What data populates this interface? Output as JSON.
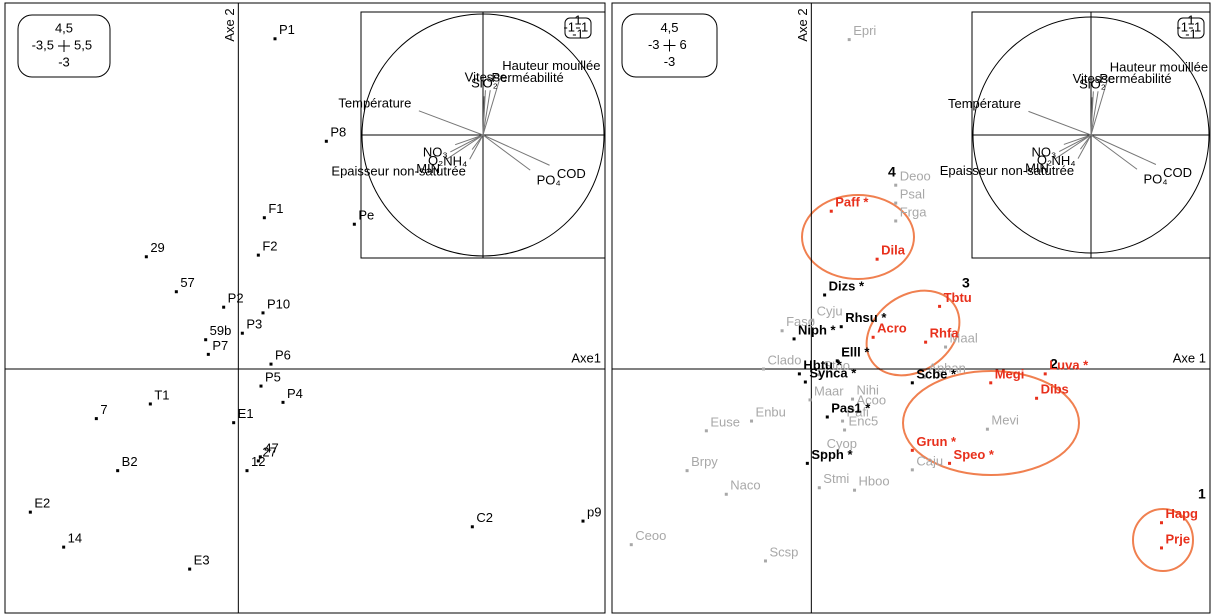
{
  "chart_data": [
    {
      "type": "scatter",
      "x_label": "Axe1",
      "y_label": "Axe 2",
      "xlim": [
        -3.5,
        5.5
      ],
      "ylim": [
        -3,
        4.5
      ],
      "xticks": [
        {
          "value": -3.5,
          "label": "-3,5"
        },
        {
          "value": 5.5,
          "label": "5,5"
        }
      ],
      "yticks": [
        -3,
        {
          "value": 4.5,
          "label": "4,5"
        }
      ],
      "series": [
        {
          "color": "#000000",
          "labels": [
            "P1",
            "P8",
            "Pe",
            "F1",
            "F2",
            "29",
            "57",
            "P2",
            "P10",
            "59b",
            "P3",
            "P7",
            "P6",
            "P5",
            "P4",
            "7",
            "T1",
            "E1",
            "47",
            "27",
            "12",
            "B2",
            "E2",
            "14",
            "C2",
            "p9",
            "E3"
          ],
          "x": [
            0.55,
            1.32,
            1.74,
            0.39,
            0.3,
            -1.38,
            -0.93,
            -0.22,
            0.37,
            -0.49,
            0.06,
            -0.45,
            0.49,
            0.34,
            0.67,
            -2.13,
            -1.32,
            -0.07,
            0.33,
            0.3,
            0.13,
            -1.81,
            -3.12,
            -2.62,
            3.51,
            5.17,
            -0.73
          ],
          "values": [
            4.06,
            2.8,
            1.78,
            1.86,
            1.4,
            1.38,
            0.95,
            0.76,
            0.69,
            0.36,
            0.44,
            0.18,
            0.06,
            -0.21,
            -0.41,
            -0.61,
            -0.43,
            -0.66,
            -1.08,
            -1.13,
            -1.25,
            -1.25,
            -1.76,
            -2.19,
            -1.94,
            -1.87,
            -2.46
          ]
        }
      ],
      "circle_ticks": [
        -1,
        1
      ],
      "loadings": {
        "labels": [
          "Hauteur mouillée",
          "Vitesse",
          "SiO₂",
          "Perméabilité",
          "Température",
          "NO₃",
          "O₂",
          "MIN",
          "NH₄",
          "Epaisseur non-satutrée",
          "COD",
          "PO₄"
        ],
        "x": [
          0.14,
          0.02,
          0.01,
          0.06,
          -0.53,
          -0.23,
          -0.27,
          -0.3,
          -0.09,
          -0.11,
          0.55,
          0.39
        ],
        "y": [
          0.47,
          0.37,
          0.32,
          0.37,
          0.2,
          -0.08,
          -0.14,
          -0.2,
          -0.12,
          -0.2,
          -0.25,
          -0.29
        ]
      }
    },
    {
      "type": "scatter",
      "x_label": "Axe 1",
      "y_label": "Axe 2",
      "xlim": [
        -3,
        6
      ],
      "ylim": [
        -3,
        4.5
      ],
      "xticks": [
        -3,
        6
      ],
      "yticks": [
        -3,
        {
          "value": 4.5,
          "label": "4,5"
        }
      ],
      "series": [
        {
          "color": "#a8a8a8",
          "labels": [
            "Epri",
            "Deoo",
            "Psal",
            "Frga",
            "Cyju",
            "Faso",
            "Maal",
            "Clado",
            "Stoo",
            "Aphan",
            "Maar",
            "Nihi",
            "Acoo",
            "Enbu",
            "Pafi",
            "Mevi",
            "Euse",
            "Enc5",
            "Cyop",
            "Caju",
            "Brpy",
            "Stmi",
            "Hboo",
            "Naco",
            "Ceoo",
            "Scsp"
          ],
          "x": [
            0.57,
            1.27,
            1.27,
            1.27,
            0.02,
            -0.44,
            2.02,
            -0.72,
            0.12,
            1.7,
            -0.02,
            0.62,
            0.62,
            -0.9,
            0.47,
            2.65,
            -1.58,
            0.5,
            0.17,
            1.52,
            -1.87,
            0.12,
            0.65,
            -1.28,
            -2.71,
            -0.69
          ],
          "values": [
            4.05,
            2.26,
            2.04,
            1.82,
            0.6,
            0.47,
            0.27,
            0.0,
            -0.07,
            -0.1,
            -0.38,
            -0.37,
            -0.49,
            -0.64,
            -0.64,
            -0.74,
            -0.76,
            -0.75,
            -1.03,
            -1.24,
            -1.25,
            -1.46,
            -1.49,
            -1.54,
            -2.16,
            -2.36
          ]
        },
        {
          "color": "#000000",
          "labels": [
            "Dizs *",
            "Rhsu *",
            "Niph *",
            "Elll *",
            "Hbtu *",
            "Synca *",
            "Scbe *",
            "Pas1 *",
            "Spph *"
          ],
          "x": [
            0.2,
            0.45,
            -0.26,
            0.39,
            -0.18,
            -0.09,
            1.52,
            0.24,
            -0.06
          ],
          "values": [
            0.91,
            0.52,
            0.37,
            0.1,
            -0.06,
            -0.16,
            -0.17,
            -0.59,
            -1.16
          ]
        },
        {
          "color": "#e8301c",
          "labels": [
            "Paff *",
            "Dila",
            "Tbtu",
            "Rhfa",
            "Acro",
            "Megi",
            "Luva *",
            "Dibs",
            "Grun *",
            "Speo *",
            "Hapg",
            "Prje"
          ],
          "x": [
            0.3,
            0.99,
            1.93,
            1.72,
            0.93,
            2.7,
            3.52,
            3.39,
            1.52,
            2.08,
            5.27,
            5.27
          ],
          "values": [
            1.94,
            1.35,
            0.77,
            0.33,
            0.39,
            -0.17,
            -0.06,
            -0.36,
            -1.0,
            -1.16,
            -1.89,
            -2.2
          ]
        }
      ],
      "groups": [
        "1",
        "2",
        "3",
        "4"
      ],
      "circle_ticks": [
        -1,
        1
      ],
      "loadings": {
        "labels": [
          "Hauteur mouillée",
          "Vitesse",
          "SiO₂",
          "Perméabilité",
          "Température",
          "NO₃",
          "O₂",
          "MIN",
          "NH₄",
          "Epaisseur non-satutrée",
          "COD",
          "PO₄"
        ],
        "x": [
          0.14,
          0.02,
          0.01,
          0.06,
          -0.53,
          -0.23,
          -0.27,
          -0.3,
          -0.09,
          -0.11,
          0.55,
          0.39
        ],
        "y": [
          0.47,
          0.37,
          0.32,
          0.37,
          0.2,
          -0.08,
          -0.14,
          -0.2,
          -0.12,
          -0.2,
          -0.25,
          -0.29
        ]
      }
    }
  ]
}
